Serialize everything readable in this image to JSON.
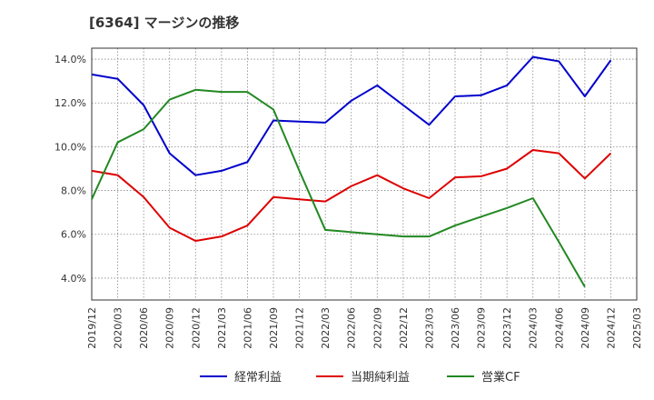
{
  "chart_data": {
    "type": "line",
    "title": "[6364]  マージンの推移",
    "x": [
      "2019/12",
      "2020/03",
      "2020/06",
      "2020/09",
      "2020/12",
      "2021/03",
      "2021/06",
      "2021/09",
      "2021/12",
      "2022/03",
      "2022/06",
      "2022/09",
      "2022/12",
      "2023/03",
      "2023/06",
      "2023/09",
      "2023/12",
      "2024/03",
      "2024/06",
      "2024/09",
      "2024/12",
      "2025/03"
    ],
    "y_ticks": [
      "4.0%",
      "6.0%",
      "8.0%",
      "10.0%",
      "12.0%",
      "14.0%"
    ],
    "y_tick_values": [
      4,
      6,
      8,
      10,
      12,
      14
    ],
    "ylim": [
      3.0,
      14.5
    ],
    "grid": true,
    "legend_position": "bottom",
    "series": [
      {
        "name": "経常利益",
        "color": "#0000cc",
        "values": [
          13.3,
          13.1,
          11.9,
          9.7,
          8.7,
          8.9,
          9.3,
          11.2,
          11.15,
          11.1,
          12.1,
          12.8,
          11.9,
          11.0,
          12.3,
          12.35,
          12.8,
          14.1,
          13.9,
          12.3,
          13.95,
          null
        ]
      },
      {
        "name": "当期純利益",
        "color": "#dd0000",
        "values": [
          8.9,
          8.7,
          7.7,
          6.3,
          5.7,
          5.9,
          6.4,
          7.7,
          7.6,
          7.5,
          8.2,
          8.7,
          8.1,
          7.65,
          8.6,
          8.65,
          9.0,
          9.85,
          9.7,
          8.55,
          9.7,
          null
        ]
      },
      {
        "name": "営業CF",
        "color": "#228822",
        "values": [
          7.6,
          10.2,
          10.8,
          12.15,
          12.6,
          12.5,
          12.5,
          11.7,
          8.9,
          6.2,
          6.1,
          6.0,
          5.9,
          5.9,
          6.4,
          6.8,
          7.2,
          7.65,
          5.65,
          3.6,
          null,
          null
        ]
      }
    ]
  }
}
